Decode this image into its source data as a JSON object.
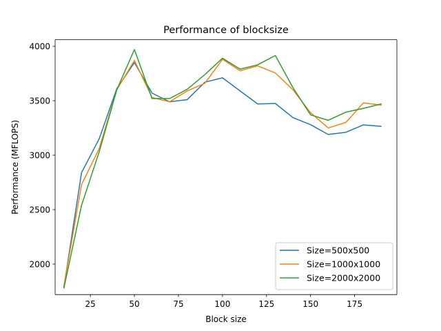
{
  "chart_data": {
    "type": "line",
    "title": "Performance of blocksize",
    "xlabel": "Block size",
    "ylabel": "Performance (MFLOPS)",
    "xlim": [
      5,
      199
    ],
    "ylim": [
      1720,
      4060
    ],
    "xticks": [
      25,
      50,
      75,
      100,
      125,
      150,
      175
    ],
    "yticks": [
      2000,
      2500,
      3000,
      3500,
      4000
    ],
    "grid": false,
    "legend_position": "lower-right",
    "x": [
      10,
      20,
      30,
      40,
      50,
      60,
      70,
      80,
      90,
      100,
      110,
      120,
      130,
      140,
      150,
      160,
      170,
      180,
      190
    ],
    "series": [
      {
        "name": "Size=500x500",
        "color": "#1f77b4",
        "values": [
          1790,
          2840,
          3150,
          3610,
          3850,
          3570,
          3490,
          3510,
          3670,
          3710,
          3590,
          3470,
          3475,
          3345,
          3280,
          3190,
          3210,
          3278,
          3265
        ]
      },
      {
        "name": "Size=1000x1000",
        "color": "#ff7f0e",
        "values": [
          1800,
          2730,
          3060,
          3600,
          3870,
          3530,
          3490,
          3590,
          3660,
          3880,
          3775,
          3820,
          3755,
          3600,
          3390,
          3250,
          3300,
          3480,
          3460
        ]
      },
      {
        "name": "Size=2000x2000",
        "color": "#2ca02c",
        "values": [
          1780,
          2540,
          3030,
          3600,
          3970,
          3520,
          3520,
          3605,
          3740,
          3890,
          3790,
          3830,
          3915,
          3620,
          3370,
          3320,
          3395,
          3430,
          3470
        ]
      }
    ]
  }
}
